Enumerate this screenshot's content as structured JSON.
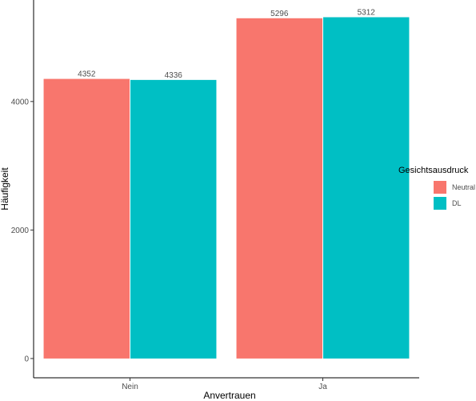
{
  "chart_data": {
    "type": "bar",
    "title": "",
    "xlabel": "Anvertrauen",
    "ylabel": "Häufigkeit",
    "categories": [
      "Nein",
      "Ja"
    ],
    "series": [
      {
        "name": "Neutral",
        "values": [
          4352,
          5296
        ],
        "color": "#F8766D"
      },
      {
        "name": "DL",
        "values": [
          4336,
          5312
        ],
        "color": "#00BFC4"
      }
    ],
    "ylim": [
      -300,
      5580
    ],
    "yticks": [
      0,
      2000,
      4000
    ],
    "grid": false,
    "legend": {
      "title": "Gesichtsausdruck",
      "position": "right"
    },
    "data_labels": true
  }
}
